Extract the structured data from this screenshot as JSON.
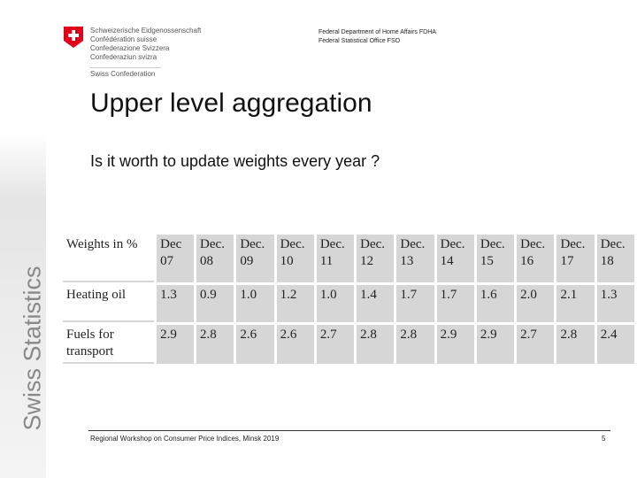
{
  "header": {
    "confederation": [
      "Schweizerische Eidgenossenschaft",
      "Confédération suisse",
      "Confederazione Svizzera",
      "Confederaziun svizra"
    ],
    "swiss_confederation": "Swiss Confederation",
    "department": "Federal Department of Home Affairs FDHA",
    "office": "Federal Statistical Office FSO"
  },
  "sidebar": "Swiss Statistics",
  "title": "Upper level aggregation",
  "subtitle": "Is it worth to update weights every year ?",
  "table": {
    "header": [
      "Weights in %",
      "Dec 07",
      "Dec. 08",
      "Dec. 09",
      "Dec. 10",
      "Dec. 11",
      "Dec. 12",
      "Dec. 13",
      "Dec. 14",
      "Dec. 15",
      "Dec. 16",
      "Dec. 17",
      "Dec. 18"
    ],
    "rows": [
      [
        "Heating oil",
        "1.3",
        "0.9",
        "1.0",
        "1.2",
        "1.0",
        "1.4",
        "1.7",
        "1.7",
        "1.6",
        "2.0",
        "2.1",
        "1.3"
      ],
      [
        "Fuels for transport",
        "2.9",
        "2.8",
        "2.6",
        "2.6",
        "2.7",
        "2.8",
        "2.8",
        "2.9",
        "2.9",
        "2.7",
        "2.8",
        "2.4"
      ]
    ]
  },
  "footer": {
    "text": "Regional Workshop on Consumer Price Indices, Minsk 2019",
    "page": "5"
  }
}
